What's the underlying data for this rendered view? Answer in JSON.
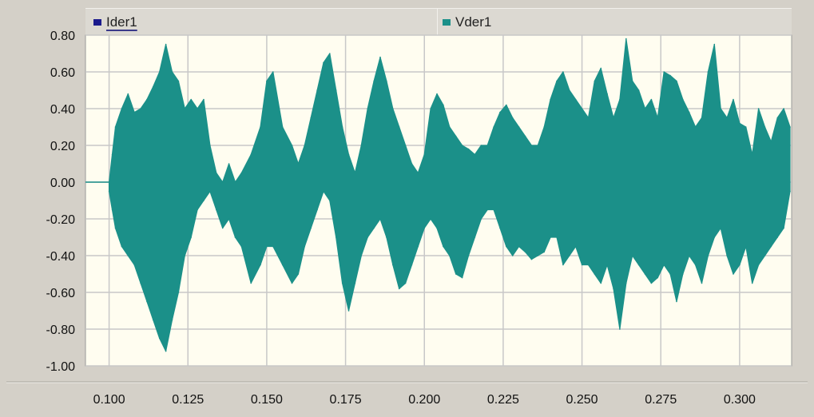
{
  "chart_data": {
    "type": "line",
    "title": "",
    "xlabel": "",
    "ylabel": "",
    "xlim": [
      0.0925,
      0.3165
    ],
    "ylim": [
      -1.0,
      0.8
    ],
    "x_ticks": [
      0.1,
      0.125,
      0.15,
      0.175,
      0.2,
      0.225,
      0.25,
      0.275,
      0.3
    ],
    "x_tick_labels": [
      "0.100",
      "0.125",
      "0.150",
      "0.175",
      "0.200",
      "0.225",
      "0.250",
      "0.275",
      "0.300"
    ],
    "y_ticks": [
      0.8,
      0.6,
      0.4,
      0.2,
      0.0,
      -0.2,
      -0.4,
      -0.6,
      -0.8,
      -1.0
    ],
    "y_tick_labels": [
      "0.80",
      "0.60",
      "0.40",
      "0.20",
      "0.00",
      "-0.20",
      "-0.40",
      "-0.60",
      "-0.80",
      "-1.00"
    ],
    "grid": true,
    "legend_placement": "top",
    "series": [
      {
        "name": "Ider1",
        "color": "#1a1a8c",
        "x": [],
        "y_max": [],
        "y_min": []
      },
      {
        "name": "Vder1",
        "color": "#1b9089",
        "x": [
          0.1,
          0.101,
          0.102,
          0.104,
          0.106,
          0.108,
          0.11,
          0.112,
          0.114,
          0.116,
          0.118,
          0.12,
          0.122,
          0.124,
          0.126,
          0.128,
          0.13,
          0.132,
          0.134,
          0.136,
          0.138,
          0.14,
          0.142,
          0.145,
          0.148,
          0.15,
          0.152,
          0.155,
          0.158,
          0.16,
          0.162,
          0.164,
          0.166,
          0.168,
          0.17,
          0.172,
          0.174,
          0.176,
          0.178,
          0.18,
          0.182,
          0.184,
          0.186,
          0.188,
          0.19,
          0.192,
          0.194,
          0.196,
          0.198,
          0.2,
          0.202,
          0.204,
          0.206,
          0.208,
          0.21,
          0.212,
          0.214,
          0.216,
          0.218,
          0.22,
          0.222,
          0.224,
          0.226,
          0.228,
          0.23,
          0.232,
          0.234,
          0.236,
          0.238,
          0.24,
          0.242,
          0.244,
          0.246,
          0.248,
          0.25,
          0.252,
          0.254,
          0.256,
          0.258,
          0.26,
          0.262,
          0.264,
          0.266,
          0.268,
          0.27,
          0.272,
          0.274,
          0.276,
          0.278,
          0.28,
          0.282,
          0.284,
          0.286,
          0.288,
          0.29,
          0.292,
          0.294,
          0.296,
          0.298,
          0.3,
          0.302,
          0.304,
          0.306,
          0.308,
          0.31,
          0.312,
          0.314,
          0.316
        ],
        "y_max": [
          0.0,
          0.15,
          0.3,
          0.4,
          0.48,
          0.38,
          0.4,
          0.45,
          0.52,
          0.6,
          0.75,
          0.6,
          0.55,
          0.4,
          0.45,
          0.4,
          0.45,
          0.2,
          0.05,
          0.0,
          0.1,
          0.0,
          0.05,
          0.15,
          0.3,
          0.55,
          0.6,
          0.3,
          0.2,
          0.1,
          0.2,
          0.35,
          0.5,
          0.65,
          0.7,
          0.5,
          0.3,
          0.15,
          0.05,
          0.2,
          0.4,
          0.55,
          0.68,
          0.55,
          0.4,
          0.3,
          0.2,
          0.1,
          0.05,
          0.15,
          0.4,
          0.48,
          0.42,
          0.3,
          0.25,
          0.2,
          0.18,
          0.15,
          0.2,
          0.2,
          0.3,
          0.38,
          0.42,
          0.35,
          0.3,
          0.25,
          0.2,
          0.2,
          0.3,
          0.45,
          0.55,
          0.6,
          0.5,
          0.45,
          0.4,
          0.35,
          0.55,
          0.62,
          0.48,
          0.35,
          0.45,
          0.78,
          0.55,
          0.5,
          0.4,
          0.45,
          0.35,
          0.6,
          0.58,
          0.55,
          0.45,
          0.38,
          0.3,
          0.35,
          0.6,
          0.75,
          0.4,
          0.35,
          0.45,
          0.32,
          0.3,
          0.15,
          0.4,
          0.3,
          0.22,
          0.35,
          0.4,
          0.3
        ],
        "y_min": [
          -0.05,
          -0.15,
          -0.25,
          -0.35,
          -0.4,
          -0.45,
          -0.55,
          -0.65,
          -0.75,
          -0.85,
          -0.92,
          -0.75,
          -0.6,
          -0.4,
          -0.3,
          -0.15,
          -0.1,
          -0.05,
          -0.15,
          -0.25,
          -0.2,
          -0.3,
          -0.35,
          -0.55,
          -0.45,
          -0.35,
          -0.35,
          -0.45,
          -0.55,
          -0.5,
          -0.35,
          -0.25,
          -0.15,
          -0.05,
          -0.1,
          -0.3,
          -0.55,
          -0.7,
          -0.55,
          -0.4,
          -0.3,
          -0.25,
          -0.2,
          -0.3,
          -0.45,
          -0.58,
          -0.55,
          -0.45,
          -0.35,
          -0.25,
          -0.2,
          -0.25,
          -0.35,
          -0.4,
          -0.5,
          -0.52,
          -0.4,
          -0.3,
          -0.2,
          -0.15,
          -0.15,
          -0.25,
          -0.35,
          -0.4,
          -0.35,
          -0.38,
          -0.42,
          -0.4,
          -0.38,
          -0.3,
          -0.3,
          -0.45,
          -0.4,
          -0.35,
          -0.45,
          -0.45,
          -0.5,
          -0.55,
          -0.45,
          -0.58,
          -0.8,
          -0.55,
          -0.4,
          -0.45,
          -0.5,
          -0.55,
          -0.52,
          -0.45,
          -0.5,
          -0.65,
          -0.5,
          -0.4,
          -0.45,
          -0.55,
          -0.4,
          -0.3,
          -0.25,
          -0.4,
          -0.5,
          -0.45,
          -0.35,
          -0.55,
          -0.45,
          -0.4,
          -0.35,
          -0.3,
          -0.25,
          -0.05
        ]
      }
    ]
  }
}
